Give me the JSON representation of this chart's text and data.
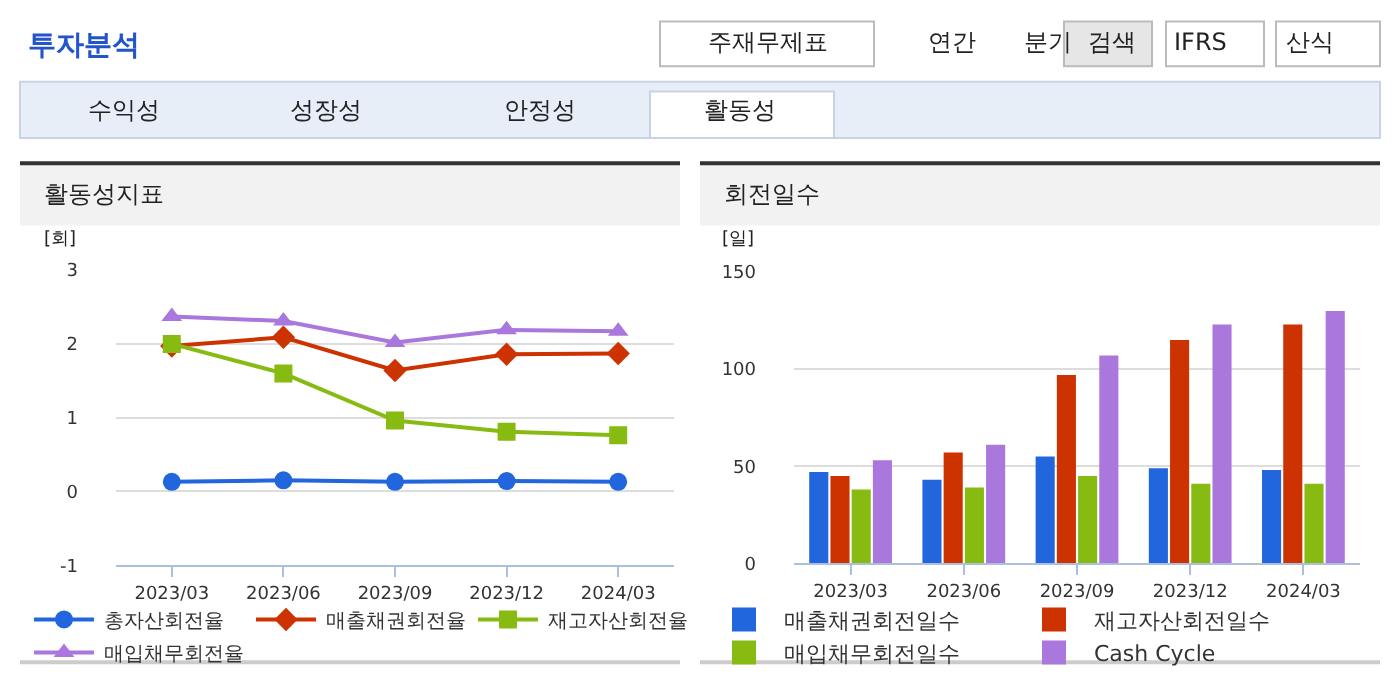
{
  "chart_data": [
    {
      "type": "other",
      "title": "투자분석",
      "annotations": [
        "주재무제표",
        "연간",
        "분기",
        "검색",
        "IFRS",
        "산식",
        "수익성",
        "성장성",
        "안정성",
        "활동성"
      ]
    },
    {
      "type": "line",
      "title": "활동성지표",
      "ylabel": "[회]",
      "categories": [
        "2023/03",
        "2023/06",
        "2023/09",
        "2023/12",
        "2024/03"
      ],
      "ylim": [
        -1,
        3
      ],
      "yticks": [
        -1,
        0,
        1,
        2,
        3
      ],
      "grid": "y",
      "legend": "bottom",
      "series": [
        {
          "name": "총자산회전율",
          "color": "#2266dd",
          "marker": "circle",
          "values": [
            0.13,
            0.15,
            0.13,
            0.14,
            0.13
          ]
        },
        {
          "name": "매출채권회전율",
          "color": "#cc3300",
          "marker": "diamond",
          "values": [
            1.97,
            2.09,
            1.64,
            1.86,
            1.87
          ]
        },
        {
          "name": "재고자산회전율",
          "color": "#88bb11",
          "marker": "square",
          "values": [
            2.0,
            1.6,
            0.96,
            0.81,
            0.76
          ]
        },
        {
          "name": "매입채무회전율",
          "color": "#aa77dd",
          "marker": "triangle",
          "values": [
            2.37,
            2.31,
            2.02,
            2.19,
            2.17
          ]
        }
      ]
    },
    {
      "type": "bar",
      "title": "회전일수",
      "ylabel": "[일]",
      "categories": [
        "2023/03",
        "2023/06",
        "2023/09",
        "2023/12",
        "2024/03"
      ],
      "ylim": [
        0,
        150
      ],
      "yticks": [
        0,
        50,
        100,
        150
      ],
      "grid": "y",
      "legend": "bottom",
      "series": [
        {
          "name": "매출채권회전일수",
          "color": "#2266dd",
          "values": [
            47,
            43,
            55,
            49,
            48
          ]
        },
        {
          "name": "재고자산회전일수",
          "color": "#cc3300",
          "values": [
            45,
            57,
            97,
            115,
            123
          ]
        },
        {
          "name": "매입채무회전일수",
          "color": "#88bb11",
          "values": [
            38,
            39,
            45,
            41,
            41
          ]
        },
        {
          "name": "Cash Cycle",
          "color": "#aa77dd",
          "values": [
            53,
            61,
            107,
            123,
            130
          ]
        }
      ]
    }
  ]
}
